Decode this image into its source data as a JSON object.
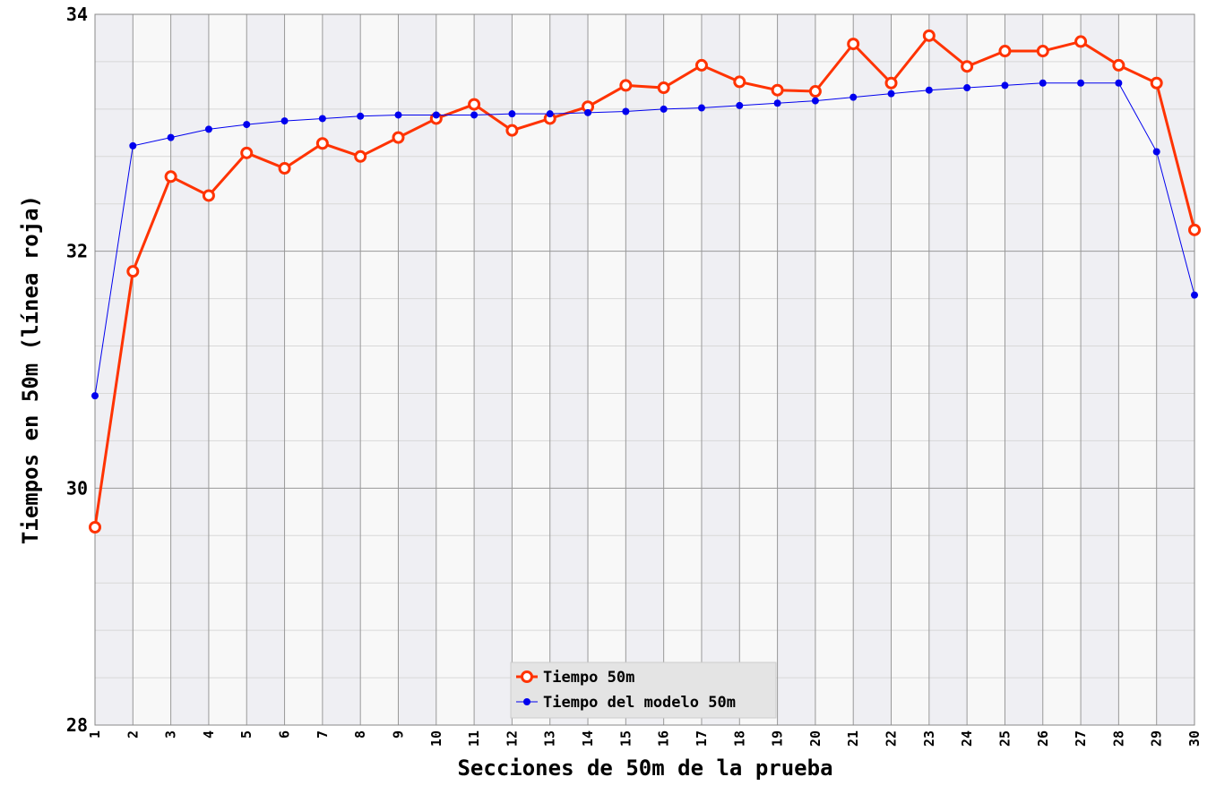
{
  "chart_data": {
    "type": "line",
    "xlabel": "Secciones de 50m de la prueba",
    "ylabel": "Tiempos en 50m (línea roja)",
    "x": [
      1,
      2,
      3,
      4,
      5,
      6,
      7,
      8,
      9,
      10,
      11,
      12,
      13,
      14,
      15,
      16,
      17,
      18,
      19,
      20,
      21,
      22,
      23,
      24,
      25,
      26,
      27,
      28,
      29,
      30
    ],
    "xlim": [
      1,
      30
    ],
    "xticks": [
      1,
      2,
      3,
      4,
      5,
      6,
      7,
      8,
      9,
      10,
      11,
      12,
      13,
      14,
      15,
      16,
      17,
      18,
      19,
      20,
      21,
      22,
      23,
      24,
      25,
      26,
      27,
      28,
      29,
      30
    ],
    "ylim": [
      28,
      34
    ],
    "yticks": [
      28,
      30,
      32,
      34
    ],
    "minor_yticks": [
      28.4,
      28.8,
      29.2,
      29.6,
      30.4,
      30.8,
      31.2,
      31.6,
      32.4,
      32.8,
      33.2,
      33.6
    ],
    "grid": true,
    "legend": "bottom",
    "series": [
      {
        "name": "Tiempo 50m",
        "color": "#ff3300",
        "marker": "open-circle",
        "values": [
          29.67,
          31.83,
          32.63,
          32.47,
          32.83,
          32.7,
          32.91,
          32.8,
          32.96,
          33.12,
          33.24,
          33.02,
          33.12,
          33.22,
          33.4,
          33.38,
          33.57,
          33.43,
          33.36,
          33.35,
          33.75,
          33.42,
          33.82,
          33.56,
          33.69,
          33.69,
          33.77,
          33.57,
          33.42,
          32.18
        ]
      },
      {
        "name": "Tiempo del modelo 50m",
        "color": "#0000ee",
        "marker": "dot",
        "values": [
          30.78,
          32.89,
          32.96,
          33.03,
          33.07,
          33.1,
          33.12,
          33.14,
          33.15,
          33.15,
          33.15,
          33.16,
          33.16,
          33.17,
          33.18,
          33.2,
          33.21,
          33.23,
          33.25,
          33.27,
          33.3,
          33.33,
          33.36,
          33.38,
          33.4,
          33.42,
          33.42,
          33.42,
          32.84,
          31.63
        ]
      }
    ]
  }
}
